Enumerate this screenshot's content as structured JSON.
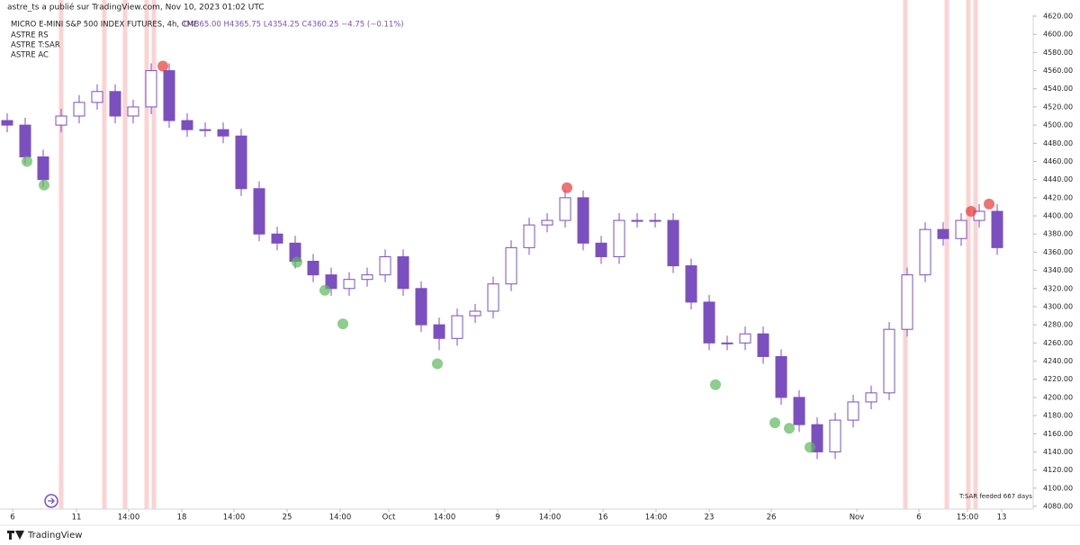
{
  "header": "astre_ts a publié sur TradingView.com, Nov 10, 2023 01:02 UTC",
  "indicators": [
    "ASTRE RS",
    "ASTRE T:SAR",
    "ASTRE AC"
  ],
  "status_text": "T:SAR feeded 667 days",
  "footer": "TradingView",
  "chart_data": {
    "type": "candlestick",
    "title": "MICRO E-MINI S&P 500 INDEX FUTURES, 4h, CME",
    "ohlc_text": "O4365.00 H4365.75 L4354.25 C4360.25 −4.75 (−0.11%)",
    "color": "#7b4fc0",
    "open": [
      4505,
      4500,
      4465,
      4500,
      4510,
      4525,
      4537,
      4510,
      4520,
      4560,
      4505,
      4495,
      4495,
      4488,
      4430,
      4380,
      4370,
      4350,
      4335,
      4320,
      4330,
      4335,
      4355,
      4320,
      4280,
      4265,
      4290,
      4295,
      4325,
      4365,
      4390,
      4395,
      4420,
      4370,
      4355,
      4395,
      4395,
      4395,
      4345,
      4305,
      4260,
      4260,
      4270,
      4245,
      4200,
      4170,
      4140,
      4175,
      4195,
      4205,
      4275,
      4335,
      4385,
      4375,
      4395,
      4405
    ],
    "high": [
      4513,
      4508,
      4473,
      4518,
      4533,
      4545,
      4545,
      4528,
      4568,
      4568,
      4513,
      4503,
      4503,
      4496,
      4438,
      4388,
      4378,
      4358,
      4343,
      4338,
      4343,
      4363,
      4363,
      4328,
      4288,
      4298,
      4303,
      4333,
      4373,
      4398,
      4403,
      4428,
      4428,
      4378,
      4403,
      4403,
      4403,
      4403,
      4353,
      4313,
      4268,
      4278,
      4278,
      4253,
      4208,
      4178,
      4183,
      4203,
      4213,
      4283,
      4343,
      4393,
      4393,
      4403,
      4413,
      4413
    ],
    "low": [
      4492,
      4457,
      4432,
      4492,
      4502,
      4517,
      4502,
      4502,
      4512,
      4497,
      4487,
      4487,
      4480,
      4422,
      4372,
      4362,
      4342,
      4327,
      4312,
      4312,
      4322,
      4327,
      4312,
      4272,
      4252,
      4257,
      4282,
      4287,
      4317,
      4357,
      4382,
      4387,
      4362,
      4347,
      4347,
      4387,
      4387,
      4337,
      4297,
      4252,
      4252,
      4252,
      4237,
      4192,
      4162,
      4132,
      4132,
      4167,
      4187,
      4197,
      4267,
      4327,
      4367,
      4367,
      4387,
      4357
    ],
    "close": [
      4500,
      4465,
      4440,
      4510,
      4525,
      4537,
      4510,
      4520,
      4560,
      4505,
      4495,
      4495,
      4488,
      4430,
      4380,
      4370,
      4350,
      4335,
      4320,
      4330,
      4335,
      4355,
      4320,
      4280,
      4265,
      4290,
      4295,
      4325,
      4365,
      4390,
      4395,
      4420,
      4370,
      4355,
      4395,
      4395,
      4395,
      4345,
      4305,
      4260,
      4260,
      4270,
      4245,
      4200,
      4170,
      4140,
      4175,
      4195,
      4205,
      4275,
      4335,
      4385,
      4375,
      4395,
      4405,
      4365
    ],
    "xlim": [
      -0.4,
      57
    ],
    "xticks": [
      {
        "value": 0.3,
        "label": "6"
      },
      {
        "value": 3.85,
        "label": "11"
      },
      {
        "value": 6.75,
        "label": "14:00"
      },
      {
        "value": 9.7,
        "label": "18"
      },
      {
        "value": 12.6,
        "label": "14:00"
      },
      {
        "value": 15.55,
        "label": "25"
      },
      {
        "value": 18.5,
        "label": "14:00"
      },
      {
        "value": 21.2,
        "label": "Oct"
      },
      {
        "value": 24.3,
        "label": "14:00"
      },
      {
        "value": 27.25,
        "label": "9"
      },
      {
        "value": 30.15,
        "label": "14:00"
      },
      {
        "value": 33.1,
        "label": "16"
      },
      {
        "value": 36.05,
        "label": "14:00"
      },
      {
        "value": 39,
        "label": "23"
      },
      {
        "value": 42.45,
        "label": "26"
      },
      {
        "value": 47.2,
        "label": "Nov"
      },
      {
        "value": 50.65,
        "label": "6"
      },
      {
        "value": 53.35,
        "label": "15:00"
      },
      {
        "value": 55.25,
        "label": "13"
      }
    ],
    "ylim": [
      4080,
      4620
    ],
    "yticks": [
      {
        "value": 4080,
        "label": "4080.00"
      },
      {
        "value": 4100,
        "label": "4100.00"
      },
      {
        "value": 4120,
        "label": "4120.00"
      },
      {
        "value": 4140,
        "label": "4140.00"
      },
      {
        "value": 4160,
        "label": "4160.00"
      },
      {
        "value": 4180,
        "label": "4180.00"
      },
      {
        "value": 4200,
        "label": "4200.00"
      },
      {
        "value": 4220,
        "label": "4220.00"
      },
      {
        "value": 4240,
        "label": "4240.00"
      },
      {
        "value": 4260,
        "label": "4260.00"
      },
      {
        "value": 4280,
        "label": "4280.00"
      },
      {
        "value": 4300,
        "label": "4300.00"
      },
      {
        "value": 4320,
        "label": "4320.00"
      },
      {
        "value": 4340,
        "label": "4340.00"
      },
      {
        "value": 4360,
        "label": "4360.00"
      },
      {
        "value": 4380,
        "label": "4380.00"
      },
      {
        "value": 4400,
        "label": "4400.00"
      },
      {
        "value": 4420,
        "label": "4420.00"
      },
      {
        "value": 4440,
        "label": "4440.00"
      },
      {
        "value": 4460,
        "label": "4460.00"
      },
      {
        "value": 4480,
        "label": "4480.00"
      },
      {
        "value": 4500,
        "label": "4500.00"
      },
      {
        "value": 4520,
        "label": "4520.00"
      },
      {
        "value": 4540,
        "label": "4540.00"
      },
      {
        "value": 4560,
        "label": "4560.00"
      },
      {
        "value": 4580,
        "label": "4580.00"
      },
      {
        "value": 4600,
        "label": "4600.00"
      },
      {
        "value": 4620,
        "label": "4620.00"
      }
    ],
    "highlights": {
      "color": "#fbd3d3",
      "x": [
        3,
        5.4,
        6.55,
        7.75,
        8.15,
        49.9,
        52.2,
        53.4,
        53.8
      ]
    },
    "signals": [
      {
        "color": "#5cb85c",
        "x": [
          1.1,
          2.05,
          16.1,
          17.65,
          18.65,
          23.9,
          39.35,
          42.65,
          43.45,
          44.6
        ],
        "y": [
          4460,
          4434,
          4349,
          4318,
          4281,
          4237,
          4214,
          4172,
          4166,
          4145
        ]
      },
      {
        "color": "#e53935",
        "x": [
          8.65,
          31.1,
          53.55,
          54.55
        ],
        "y": [
          4565,
          4431,
          4405,
          4413
        ]
      }
    ]
  }
}
